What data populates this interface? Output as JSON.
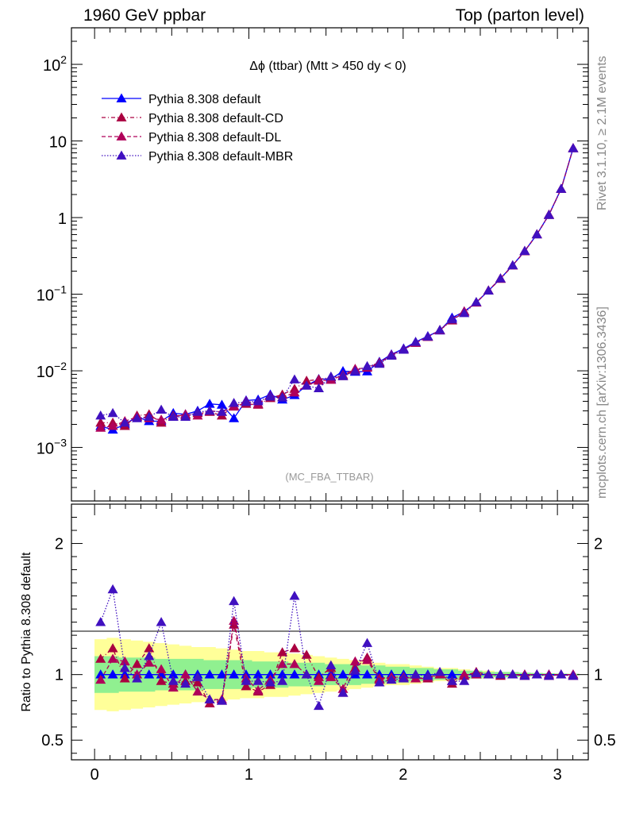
{
  "header": {
    "left": "1960 GeV ppbar",
    "right": "Top (parton level)"
  },
  "side_labels": {
    "rivet": "Rivet 3.1.10, ≥ 2.1M events",
    "mcplots": "mcplots.cern.ch [arXiv:1306.3436]"
  },
  "analysis_tag": "(MC_FBA_TTBAR)",
  "colors": {
    "default": "#0000ff",
    "cd": "#aa0040",
    "dl": "#b0005a",
    "mbr": "#4010c0",
    "band_inner": "#90f090",
    "band_outer": "#ffff99"
  },
  "chart_data": [
    {
      "type": "line",
      "title": "Δϕ (ttbar) (Mtt > 450 dy < 0)",
      "yscale": "log",
      "ylim": [
        0.0002,
        300
      ],
      "xlim": [
        -0.15,
        3.2
      ],
      "y_ticks": [
        {
          "value": 0.001,
          "base": "10",
          "exp": "−3"
        },
        {
          "value": 0.01,
          "base": "10",
          "exp": "−2"
        },
        {
          "value": 0.1,
          "base": "10",
          "exp": "−1"
        },
        {
          "value": 1,
          "base": "1",
          "exp": ""
        },
        {
          "value": 10,
          "base": "10",
          "exp": ""
        },
        {
          "value": 100,
          "base": "10",
          "exp": "2"
        }
      ],
      "x": [
        0.039,
        0.118,
        0.196,
        0.275,
        0.353,
        0.432,
        0.51,
        0.589,
        0.668,
        0.746,
        0.825,
        0.903,
        0.982,
        1.06,
        1.139,
        1.217,
        1.296,
        1.374,
        1.453,
        1.532,
        1.61,
        1.689,
        1.767,
        1.846,
        1.924,
        2.003,
        2.081,
        2.16,
        2.238,
        2.317,
        2.396,
        2.474,
        2.553,
        2.631,
        2.71,
        2.788,
        2.867,
        2.945,
        3.024,
        3.102
      ],
      "series": [
        {
          "name": "Pythia 8.308 default",
          "key": "default",
          "style": "solid",
          "values": [
            0.0019,
            0.0017,
            0.002,
            0.0025,
            0.0022,
            0.0022,
            0.0028,
            0.0027,
            0.003,
            0.0037,
            0.0036,
            0.0024,
            0.0041,
            0.0042,
            0.0049,
            0.0042,
            0.0048,
            0.0064,
            0.0078,
            0.0078,
            0.0099,
            0.0097,
            0.0098,
            0.0131,
            0.0164,
            0.0195,
            0.0238,
            0.0283,
            0.0335,
            0.0493,
            0.0595,
            0.0779,
            0.111,
            0.16,
            0.238,
            0.366,
            0.604,
            1.09,
            2.37,
            8.05
          ]
        },
        {
          "name": "Pythia 8.308 default-CD",
          "key": "cd",
          "style": "dashdot",
          "values": [
            0.0021,
            0.0021,
            0.0019,
            0.0026,
            0.0027,
            0.0021,
            0.0026,
            0.0026,
            0.0028,
            0.0029,
            0.0026,
            0.0035,
            0.0037,
            0.0036,
            0.0044,
            0.0049,
            0.0058,
            0.0074,
            0.0077,
            0.0082,
            0.0085,
            0.0102,
            0.0112,
            0.0128,
            0.0159,
            0.0189,
            0.0231,
            0.0276,
            0.034,
            0.0453,
            0.0589,
            0.0783,
            0.111,
            0.158,
            0.237,
            0.362,
            0.603,
            1.08,
            2.36,
            8.0
          ]
        },
        {
          "name": "Pythia 8.308 default-DL",
          "key": "dl",
          "style": "dashed",
          "values": [
            0.0018,
            0.0019,
            0.0022,
            0.0025,
            0.0024,
            0.0023,
            0.0025,
            0.0027,
            0.0026,
            0.003,
            0.0029,
            0.0034,
            0.004,
            0.0037,
            0.0047,
            0.0045,
            0.0052,
            0.0064,
            0.0074,
            0.0076,
            0.0088,
            0.0106,
            0.0109,
            0.0126,
            0.0161,
            0.019,
            0.0232,
            0.0278,
            0.0337,
            0.047,
            0.0595,
            0.0774,
            0.112,
            0.161,
            0.237,
            0.366,
            0.604,
            1.09,
            2.37,
            8.05
          ]
        },
        {
          "name": "Pythia 8.308 default-MBR",
          "key": "mbr",
          "style": "dotted",
          "values": [
            0.0026,
            0.0028,
            0.0021,
            0.0024,
            0.0025,
            0.0031,
            0.0025,
            0.0025,
            0.0029,
            0.003,
            0.0029,
            0.0038,
            0.0039,
            0.004,
            0.0046,
            0.0045,
            0.0077,
            0.0064,
            0.0059,
            0.0084,
            0.0085,
            0.0099,
            0.0115,
            0.0123,
            0.0157,
            0.0188,
            0.0238,
            0.0279,
            0.0341,
            0.0468,
            0.0564,
            0.0789,
            0.111,
            0.16,
            0.238,
            0.365,
            0.602,
            1.08,
            2.36,
            8.0
          ]
        }
      ]
    },
    {
      "type": "line",
      "ylabel": "Ratio to Pythia 8.308 default",
      "yscale": "linear",
      "ylim": [
        0.35,
        2.3
      ],
      "xlim": [
        -0.15,
        3.2
      ],
      "x_ticks": [
        "0",
        "1",
        "2",
        "3"
      ],
      "y_ticks": [
        "0.5",
        "1",
        "2"
      ],
      "x": [
        0.039,
        0.118,
        0.196,
        0.275,
        0.353,
        0.432,
        0.51,
        0.589,
        0.668,
        0.746,
        0.825,
        0.903,
        0.982,
        1.06,
        1.139,
        1.217,
        1.296,
        1.374,
        1.453,
        1.532,
        1.61,
        1.689,
        1.767,
        1.846,
        1.924,
        2.003,
        2.081,
        2.16,
        2.238,
        2.317,
        2.396,
        2.474,
        2.553,
        2.631,
        2.71,
        2.788,
        2.867,
        2.945,
        3.024,
        3.102
      ],
      "band_inner": [
        0.14,
        0.14,
        0.13,
        0.13,
        0.13,
        0.12,
        0.12,
        0.12,
        0.12,
        0.11,
        0.11,
        0.11,
        0.11,
        0.1,
        0.1,
        0.1,
        0.09,
        0.09,
        0.09,
        0.08,
        0.08,
        0.08,
        0.07,
        0.07,
        0.06,
        0.06,
        0.05,
        0.05,
        0.04,
        0.04,
        0.03,
        0.03,
        0.02,
        0.02,
        0.02,
        0.015,
        0.012,
        0.01,
        0.008,
        0.006
      ],
      "band_outer": [
        0.27,
        0.28,
        0.27,
        0.26,
        0.25,
        0.24,
        0.23,
        0.22,
        0.21,
        0.21,
        0.2,
        0.19,
        0.18,
        0.18,
        0.17,
        0.17,
        0.16,
        0.15,
        0.14,
        0.13,
        0.12,
        0.11,
        0.1,
        0.09,
        0.08,
        0.08,
        0.07,
        0.06,
        0.05,
        0.05,
        0.04,
        0.03,
        0.03,
        0.02,
        0.02,
        0.015,
        0.012,
        0.01,
        0.008,
        0.006
      ],
      "series": [
        {
          "name": "Pythia 8.308 default",
          "key": "default",
          "style": "solid",
          "values": [
            1,
            1,
            1,
            1,
            1,
            1,
            1,
            1,
            1,
            1,
            1,
            1,
            1,
            1,
            1,
            1,
            1,
            1,
            1,
            1,
            1,
            1,
            1,
            1,
            1,
            1,
            1,
            1,
            1,
            1,
            1,
            1,
            1,
            1,
            1,
            1,
            1,
            1,
            1,
            1
          ]
        },
        {
          "name": "Pythia 8.308 default-CD",
          "key": "cd",
          "style": "dashdot",
          "values": [
            1.12,
            1.2,
            0.97,
            1.08,
            1.2,
            0.95,
            0.93,
            0.95,
            0.94,
            0.78,
            0.8,
            1.38,
            0.91,
            0.87,
            0.92,
            1.17,
            1.2,
            1.15,
            0.98,
            1.05,
            0.86,
            1.05,
            1.13,
            0.97,
            0.98,
            0.98,
            0.97,
            0.97,
            1.0,
            0.93,
            0.99,
            1.02,
            1.0,
            0.99,
            1.0,
            0.99,
            1.0,
            0.99,
            1.0,
            0.99
          ]
        },
        {
          "name": "Pythia 8.308 default-DL",
          "key": "dl",
          "style": "dashed",
          "values": [
            0.96,
            1.12,
            1.1,
            1.0,
            1.09,
            1.04,
            0.9,
            1.0,
            0.87,
            0.81,
            0.81,
            1.41,
            0.97,
            0.88,
            0.96,
            1.08,
            1.08,
            1.0,
            0.95,
            0.98,
            0.89,
            1.1,
            1.11,
            0.96,
            0.98,
            0.98,
            0.97,
            0.98,
            1.0,
            0.95,
            1.0,
            1.0,
            1.0,
            1.0,
            1.0,
            1.0,
            1.0,
            1.0,
            1.0,
            1.0
          ]
        },
        {
          "name": "Pythia 8.308 default-MBR",
          "key": "mbr",
          "style": "dotted",
          "values": [
            1.4,
            1.65,
            1.05,
            0.97,
            1.14,
            1.4,
            0.95,
            0.93,
            0.98,
            0.81,
            0.8,
            1.56,
            0.95,
            0.95,
            0.94,
            0.95,
            1.6,
            1.0,
            0.76,
            1.07,
            0.86,
            1.03,
            1.24,
            0.94,
            0.96,
            0.97,
            1.0,
            0.99,
            1.02,
            0.95,
            0.95,
            1.01,
            1.0,
            1.0,
            1.0,
            0.99,
            1.0,
            0.99,
            1.0,
            0.99
          ]
        }
      ]
    }
  ]
}
